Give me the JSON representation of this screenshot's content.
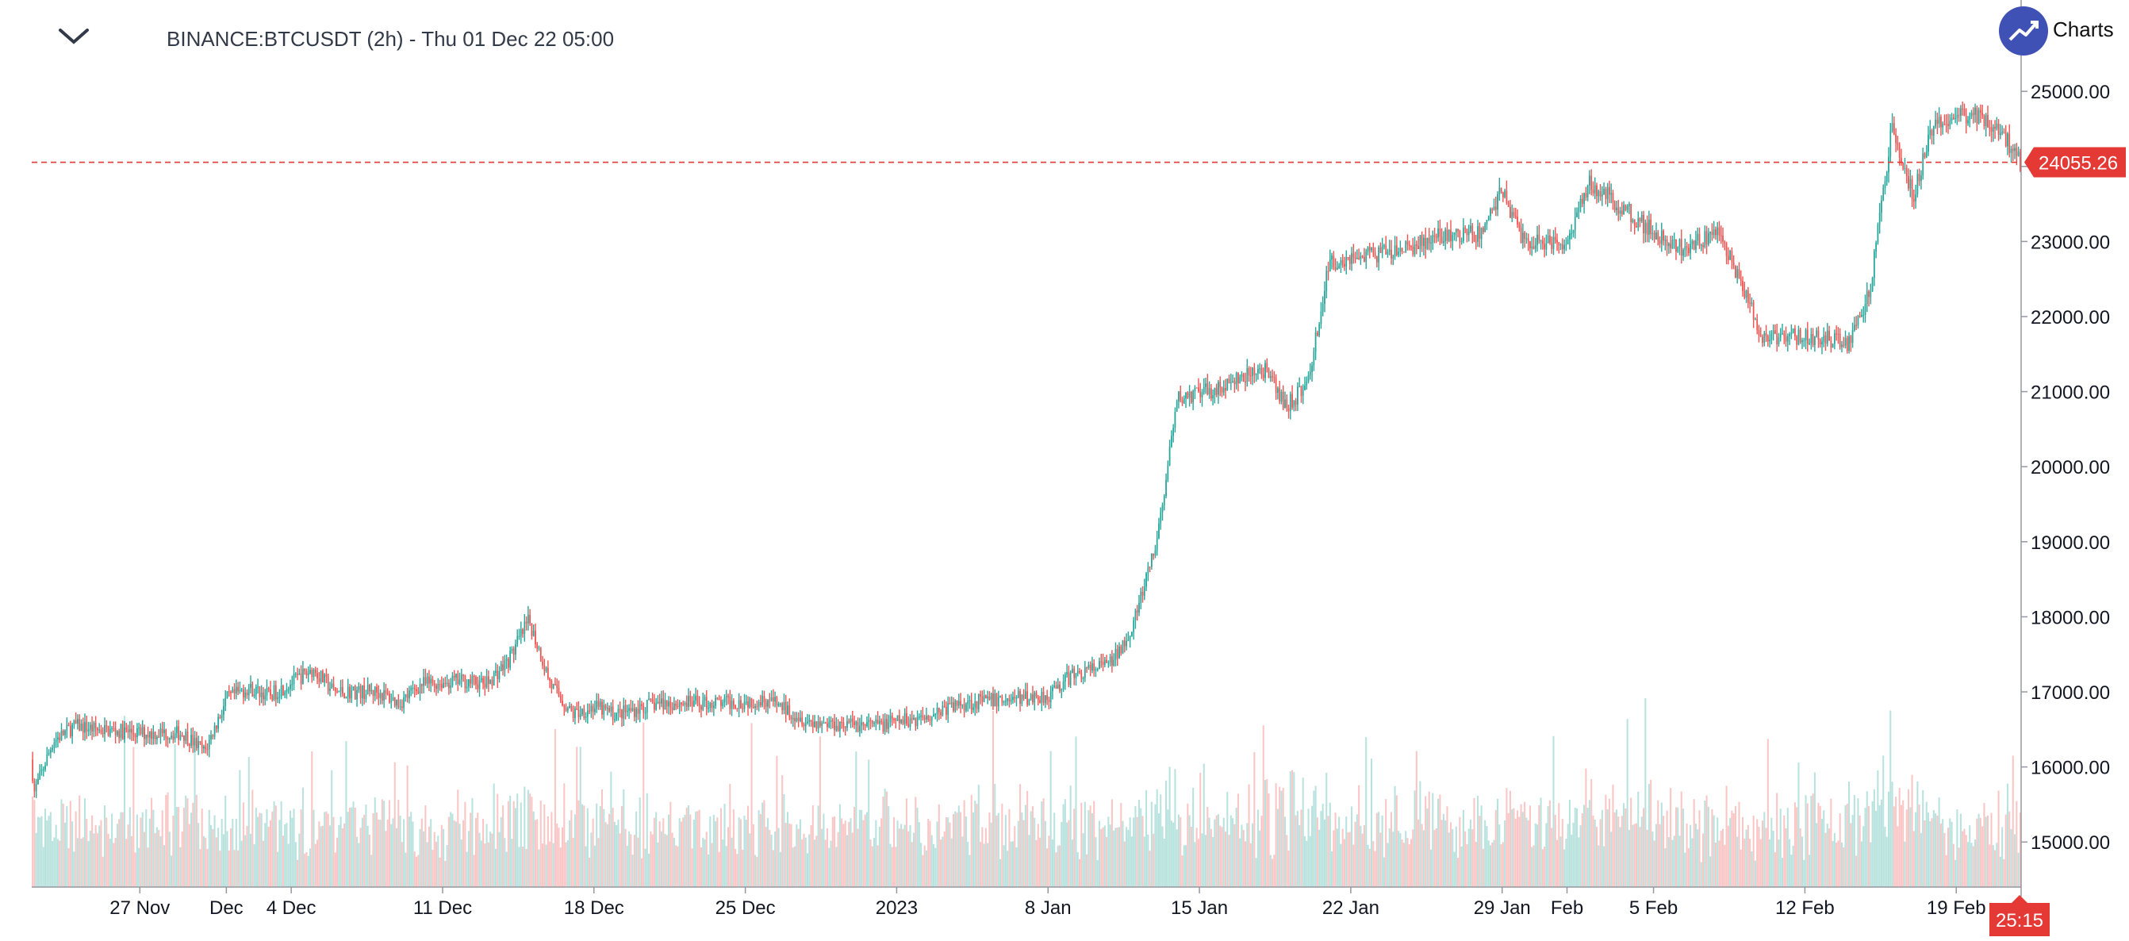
{
  "header": {
    "title": "BINANCE:BTCUSDT (2h) - Thu 01 Dec 22 05:00",
    "logo_text": "Charts"
  },
  "colors": {
    "up": "#26a69a",
    "down": "#ef5350",
    "price_line": "#e53935",
    "axis_text": "#131722"
  },
  "chart_data": {
    "type": "candlestick",
    "symbol": "BINANCE:BTCUSDT",
    "interval": "2h",
    "last_price": "24055.26",
    "countdown": "25:15",
    "y_ticks": [
      "15000.00",
      "16000.00",
      "17000.00",
      "18000.00",
      "19000.00",
      "20000.00",
      "21000.00",
      "22000.00",
      "23000.00",
      "24000.00",
      "25000.00"
    ],
    "ylim": [
      14400,
      25900
    ],
    "x_ticks": [
      "27 Nov",
      "Dec",
      "4 Dec",
      "11 Dec",
      "18 Dec",
      "25 Dec",
      "2023",
      "8 Jan",
      "15 Jan",
      "22 Jan",
      "29 Jan",
      "Feb",
      "5 Feb",
      "12 Feb",
      "19 Feb"
    ],
    "start": "2022-11-22",
    "end": "2023-02-22",
    "price_path": [
      [
        "2022-11-22",
        16100
      ],
      [
        "2022-11-22",
        15650
      ],
      [
        "2022-11-23",
        16350
      ],
      [
        "2022-11-24",
        16550
      ],
      [
        "2022-11-25",
        16500
      ],
      [
        "2022-11-27",
        16450
      ],
      [
        "2022-11-29",
        16450
      ],
      [
        "2022-11-30",
        16200
      ],
      [
        "2022-12-01",
        16900
      ],
      [
        "2022-12-02",
        17050
      ],
      [
        "2022-12-03",
        16950
      ],
      [
        "2022-12-05",
        17300
      ],
      [
        "2022-12-06",
        17000
      ],
      [
        "2022-12-08",
        17000
      ],
      [
        "2022-12-09",
        16850
      ],
      [
        "2022-12-10",
        17100
      ],
      [
        "2022-12-12",
        17150
      ],
      [
        "2022-12-13",
        17100
      ],
      [
        "2022-12-14",
        17400
      ],
      [
        "2022-12-15",
        17950
      ],
      [
        "2022-12-16",
        17100
      ],
      [
        "2022-12-17",
        16700
      ],
      [
        "2022-12-18",
        16800
      ],
      [
        "2022-12-19",
        16700
      ],
      [
        "2022-12-21",
        16850
      ],
      [
        "2022-12-24",
        16850
      ],
      [
        "2022-12-26",
        16900
      ],
      [
        "2022-12-28",
        16600
      ],
      [
        "2022-12-31",
        16550
      ],
      [
        "2023-01-02",
        16650
      ],
      [
        "2023-01-04",
        16850
      ],
      [
        "2023-01-06",
        16900
      ],
      [
        "2023-01-08",
        16950
      ],
      [
        "2023-01-09",
        17200
      ],
      [
        "2023-01-11",
        17400
      ],
      [
        "2023-01-12",
        17950
      ],
      [
        "2023-01-13",
        18950
      ],
      [
        "2023-01-14",
        20900
      ],
      [
        "2023-01-16",
        21050
      ],
      [
        "2023-01-18",
        21300
      ],
      [
        "2023-01-19",
        20800
      ],
      [
        "2023-01-20",
        21100
      ],
      [
        "2023-01-21",
        22700
      ],
      [
        "2023-01-22",
        22800
      ],
      [
        "2023-01-24",
        22850
      ],
      [
        "2023-01-26",
        23050
      ],
      [
        "2023-01-28",
        23100
      ],
      [
        "2023-01-29",
        23700
      ],
      [
        "2023-01-30",
        23000
      ],
      [
        "2023-02-01",
        23000
      ],
      [
        "2023-02-02",
        23800
      ],
      [
        "2023-02-04",
        23350
      ],
      [
        "2023-02-06",
        22900
      ],
      [
        "2023-02-08",
        23100
      ],
      [
        "2023-02-09",
        22500
      ],
      [
        "2023-02-10",
        21700
      ],
      [
        "2023-02-12",
        21750
      ],
      [
        "2023-02-14",
        21650
      ],
      [
        "2023-02-15",
        22300
      ],
      [
        "2023-02-16",
        24500
      ],
      [
        "2023-02-17",
        23600
      ],
      [
        "2023-02-18",
        24600
      ],
      [
        "2023-02-20",
        24700
      ],
      [
        "2023-02-21",
        24500
      ],
      [
        "2023-02-22",
        24050
      ]
    ]
  }
}
